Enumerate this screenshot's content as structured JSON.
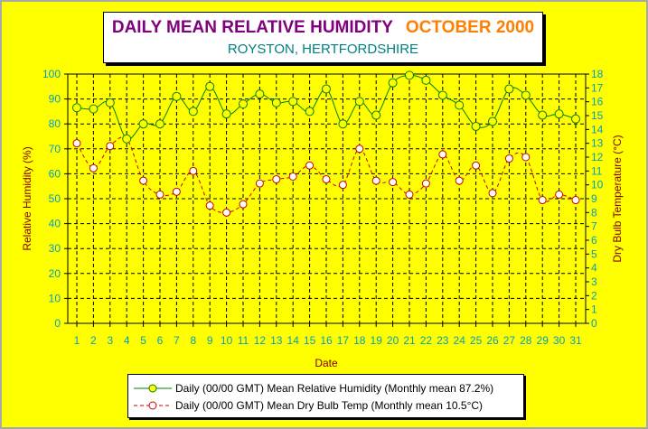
{
  "title": {
    "main": "DAILY MEAN RELATIVE HUMIDITY",
    "month": "OCTOBER 2000",
    "subtitle": "ROYSTON, HERTFORDSHIRE"
  },
  "colors": {
    "background": "#ffff00",
    "rh_line": "#008000",
    "rh_marker_fill": "#ffff00",
    "temp_line": "#cc0000",
    "left_axis_text": "#00a0c0",
    "axis_title": "#800000"
  },
  "legend": {
    "rh_label": "Daily (00/00 GMT) Mean Relative Humidity (Monthly mean 87.2%)",
    "temp_label": "Daily (00/00 GMT) Mean Dry Bulb Temp (Monthly mean 10.5°C)"
  },
  "chart_data": {
    "type": "line",
    "title": "DAILY MEAN RELATIVE HUMIDITY   OCTOBER 2000",
    "subtitle": "ROYSTON, HERTFORDSHIRE",
    "xlabel": "Date",
    "ylabel": "Relative Humidity (%)",
    "y2label": "Dry Bulb Temperature (°C)",
    "x": [
      1,
      2,
      3,
      4,
      5,
      6,
      7,
      8,
      9,
      10,
      11,
      12,
      13,
      14,
      15,
      16,
      17,
      18,
      19,
      20,
      21,
      22,
      23,
      24,
      25,
      26,
      27,
      28,
      29,
      30,
      31
    ],
    "ylim": [
      0,
      100
    ],
    "y_ticks": [
      0,
      10,
      20,
      30,
      40,
      50,
      60,
      70,
      80,
      90,
      100
    ],
    "y2lim": [
      0,
      18
    ],
    "y2_ticks": [
      0,
      1,
      2,
      3,
      4,
      5,
      6,
      7,
      8,
      9,
      10,
      11,
      12,
      13,
      14,
      15,
      16,
      17,
      18
    ],
    "grid": true,
    "legend_position": "bottom",
    "series": [
      {
        "name": "Daily (00/00 GMT) Mean Relative Humidity (Monthly mean 87.2%)",
        "axis": "left",
        "style": "solid",
        "values": [
          86.5,
          86,
          88.5,
          74,
          80,
          80,
          91,
          85,
          95,
          84,
          88,
          92,
          88.5,
          89,
          85,
          94,
          80,
          89,
          83.5,
          96.5,
          99.5,
          97.5,
          91.5,
          87.5,
          79,
          81,
          94,
          91.5,
          83.5,
          84,
          82
        ]
      },
      {
        "name": "Daily (00/00 GMT) Mean Dry Bulb Temp (Monthly mean 10.5°C)",
        "axis": "right",
        "style": "dashed",
        "values": [
          13,
          11.2,
          12.8,
          13.3,
          10.3,
          9.3,
          9.5,
          11,
          8.5,
          8,
          8.6,
          10.1,
          10.4,
          10.6,
          11.4,
          10.4,
          10,
          12.6,
          10.3,
          10.2,
          9.3,
          10.1,
          12.2,
          10.3,
          11.4,
          9.4,
          11.9,
          12,
          8.9,
          9.3,
          8.9
        ]
      }
    ]
  }
}
